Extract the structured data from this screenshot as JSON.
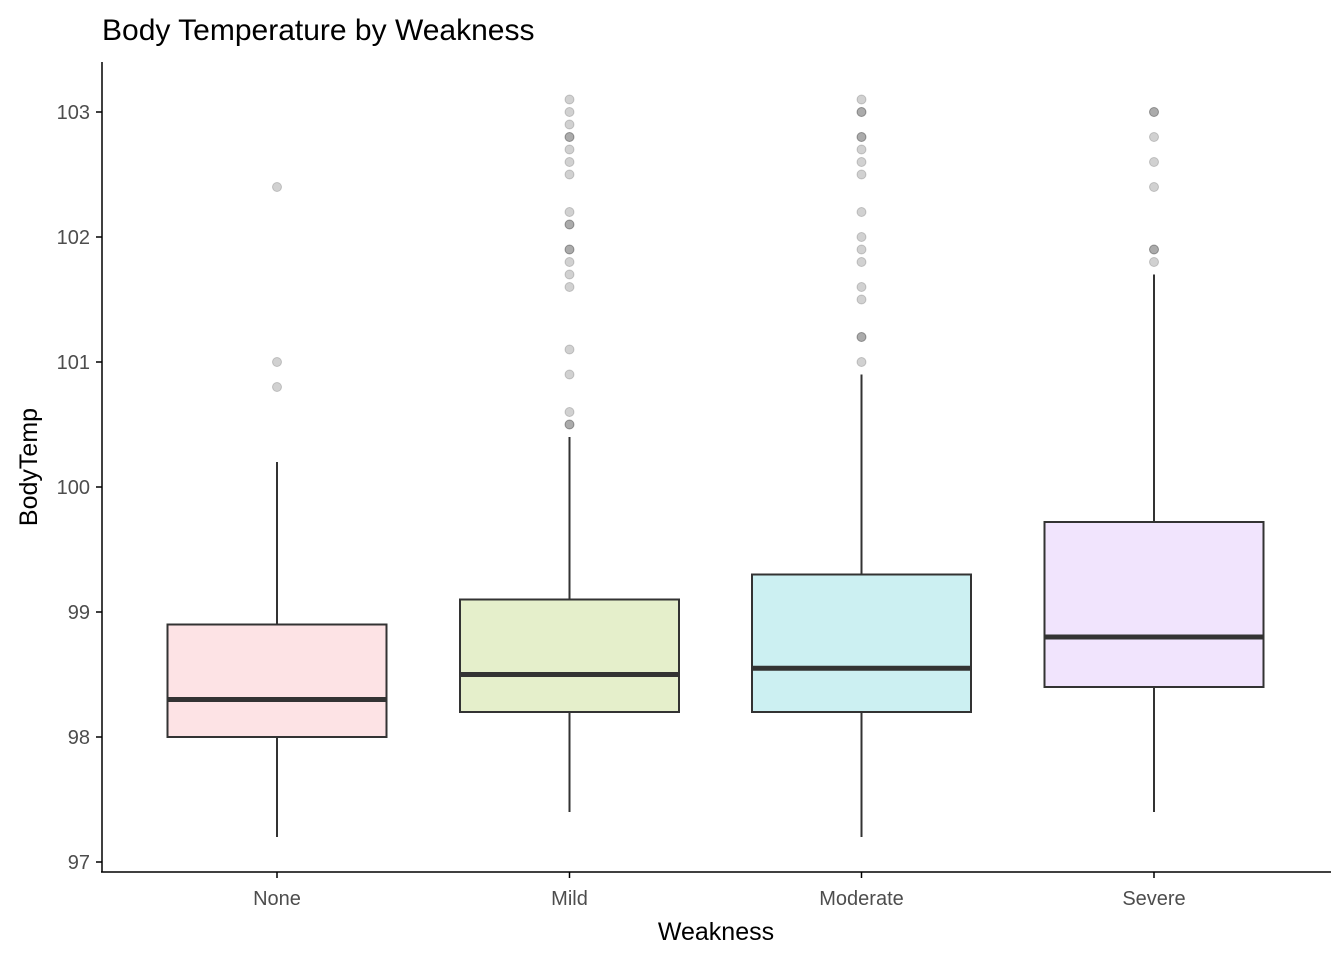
{
  "chart_data": {
    "type": "box",
    "title": "Body Temperature by Weakness",
    "xlabel": "Weakness",
    "ylabel": "BodyTemp",
    "ylim": [
      96.93,
      103.4
    ],
    "yticks": [
      97,
      98,
      99,
      100,
      101,
      102,
      103
    ],
    "grid": false,
    "legend": "none",
    "categories": [
      "None",
      "Mild",
      "Moderate",
      "Severe"
    ],
    "boxes": [
      {
        "category": "None",
        "fill": "#fde3e5",
        "whisker_low": 97.2,
        "q1": 98.0,
        "median": 98.3,
        "q3": 98.9,
        "whisker_high": 100.2,
        "outliers": [
          102.4,
          101.0,
          100.8
        ]
      },
      {
        "category": "Mild",
        "fill": "#e5efcb",
        "whisker_low": 97.4,
        "q1": 98.2,
        "median": 98.5,
        "q3": 99.1,
        "whisker_high": 100.4,
        "outliers": [
          103.1,
          103.0,
          102.9,
          102.8,
          102.8,
          102.7,
          102.6,
          102.5,
          102.2,
          102.1,
          102.1,
          101.9,
          101.9,
          101.8,
          101.7,
          101.6,
          101.1,
          100.9,
          100.6,
          100.5,
          100.5
        ]
      },
      {
        "category": "Moderate",
        "fill": "#ccf0f2",
        "whisker_low": 97.2,
        "q1": 98.2,
        "median": 98.55,
        "q3": 99.3,
        "whisker_high": 100.9,
        "outliers": [
          103.1,
          103.0,
          103.0,
          102.8,
          102.8,
          102.7,
          102.6,
          102.5,
          102.2,
          102.0,
          101.9,
          101.8,
          101.6,
          101.5,
          101.2,
          101.2,
          101.0
        ]
      },
      {
        "category": "Severe",
        "fill": "#f1e4fd",
        "whisker_low": 97.4,
        "q1": 98.4,
        "median": 98.8,
        "q3": 99.72,
        "whisker_high": 101.7,
        "outliers": [
          103.0,
          103.0,
          102.8,
          102.6,
          102.4,
          101.9,
          101.9,
          101.8
        ]
      }
    ],
    "colors": {
      "box_stroke": "#333333",
      "outlier": "#000000",
      "axis": "#000000",
      "tick_label": "#4d4d4d"
    }
  }
}
